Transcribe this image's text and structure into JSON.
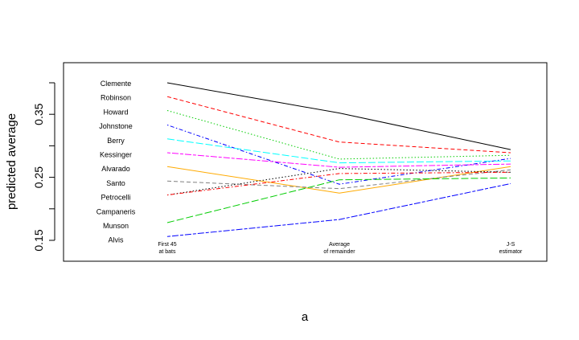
{
  "chart_data": {
    "type": "line",
    "title": "",
    "xlabel": "a",
    "ylabel": "predicted average",
    "categories": [
      "First 45\nat bats",
      "Average\nof remainder",
      "J-S\nestimator"
    ],
    "ylim": [
      0.15,
      0.4
    ],
    "yticks": [
      "0.15",
      "0.25",
      "0.35"
    ],
    "series": [
      {
        "name": "Clemente",
        "values": [
          0.4,
          0.352,
          0.294
        ],
        "color": "#000000",
        "dash": "solid"
      },
      {
        "name": "Robinson",
        "values": [
          0.378,
          0.306,
          0.289
        ],
        "color": "#ff0000",
        "dash": "dashed"
      },
      {
        "name": "Howard",
        "values": [
          0.356,
          0.279,
          0.285
        ],
        "color": "#00cc00",
        "dash": "dotted"
      },
      {
        "name": "Johnstone",
        "values": [
          0.333,
          0.239,
          0.28
        ],
        "color": "#0000ff",
        "dash": "dotdash"
      },
      {
        "name": "Berry",
        "values": [
          0.311,
          0.273,
          0.276
        ],
        "color": "#00ffff",
        "dash": "longdash"
      },
      {
        "name": "Kessinger",
        "values": [
          0.289,
          0.266,
          0.271
        ],
        "color": "#ff00ff",
        "dash": "twodash"
      },
      {
        "name": "Alvarado",
        "values": [
          0.267,
          0.225,
          0.267
        ],
        "color": "#ffaa00",
        "dash": "solid"
      },
      {
        "name": "Santo",
        "values": [
          0.244,
          0.232,
          0.262
        ],
        "color": "#808080",
        "dash": "dashed"
      },
      {
        "name": "Petrocelli",
        "values": [
          0.222,
          0.264,
          0.258
        ],
        "color": "#000000",
        "dash": "dotted"
      },
      {
        "name": "Campaneris",
        "values": [
          0.222,
          0.256,
          0.258
        ],
        "color": "#ff0000",
        "dash": "dotdash"
      },
      {
        "name": "Munson",
        "values": [
          0.178,
          0.246,
          0.249
        ],
        "color": "#00cc00",
        "dash": "longdash"
      },
      {
        "name": "Alvis",
        "values": [
          0.156,
          0.183,
          0.24
        ],
        "color": "#0000ff",
        "dash": "twodash"
      }
    ],
    "labels": [
      "Clemente",
      "Robinson",
      "Howard",
      "Johnstone",
      "Berry",
      "Kessinger",
      "Alvarado",
      "Santo",
      "Petrocelli",
      "Campaneris",
      "Munson",
      "Alvis"
    ],
    "grid": false,
    "legend": "none"
  }
}
